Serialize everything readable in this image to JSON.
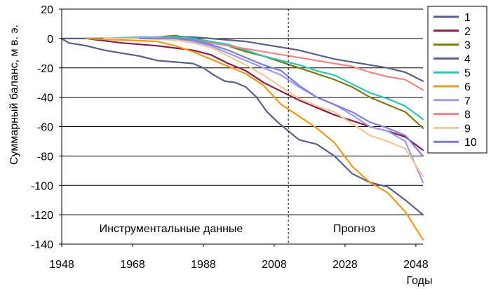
{
  "chart_data": {
    "type": "line",
    "ylabel": "Суммарный баланс,  м в. э.",
    "xlabel": "Годы",
    "xlim": [
      1948,
      2050
    ],
    "ylim": [
      -140,
      20
    ],
    "x_ticks": [
      1948,
      1968,
      1988,
      2008,
      2028,
      2048
    ],
    "y_ticks": [
      20,
      0,
      -20,
      -40,
      -60,
      -80,
      -100,
      -120,
      -140
    ],
    "grid": "horizontal",
    "legend_position": "right",
    "divider_year": 2012,
    "annotations": {
      "left": "Инструментальные данные",
      "right": "Прогноз"
    },
    "series": [
      {
        "name": "1",
        "color": "#5b5e8c",
        "x": [
          1948,
          1950,
          1955,
          1960,
          1965,
          1970,
          1975,
          1980,
          1985,
          1988,
          1991,
          1994,
          1997,
          2000,
          2003,
          2006,
          2009,
          2012,
          2015,
          2020,
          2025,
          2030,
          2035,
          2040,
          2045,
          2050
        ],
        "y": [
          0,
          -3,
          -5,
          -8,
          -10,
          -12,
          -15,
          -16,
          -17,
          -20,
          -25,
          -29,
          -30,
          -33,
          -40,
          -50,
          -57,
          -63,
          -69,
          -72,
          -80,
          -92,
          -98,
          -101,
          -110,
          -120
        ]
      },
      {
        "name": "2",
        "color": "#8b1a4a",
        "x": [
          1955,
          1965,
          1975,
          1985,
          1990,
          1995,
          2000,
          2005,
          2010,
          2015,
          2020,
          2025,
          2030,
          2035,
          2040,
          2045,
          2050
        ],
        "y": [
          0,
          -3,
          -5,
          -8,
          -11,
          -17,
          -22,
          -30,
          -36,
          -42,
          -47,
          -52,
          -56,
          -60,
          -63,
          -67,
          -76
        ]
      },
      {
        "name": "3",
        "color": "#7a7a10",
        "x": [
          1955,
          1965,
          1975,
          1980,
          1985,
          1990,
          1995,
          2000,
          2005,
          2010,
          2015,
          2020,
          2025,
          2030,
          2035,
          2040,
          2045,
          2050
        ],
        "y": [
          0,
          0,
          1,
          2,
          0,
          -2,
          -5,
          -9,
          -12,
          -16,
          -20,
          -24,
          -28,
          -33,
          -40,
          -45,
          -50,
          -61
        ]
      },
      {
        "name": "4",
        "color": "#5b5e8c",
        "x": [
          1948,
          1955,
          1965,
          1975,
          1985,
          1990,
          1995,
          2000,
          2005,
          2010,
          2015,
          2020,
          2025,
          2030,
          2035,
          2040,
          2045,
          2050
        ],
        "y": [
          0,
          0,
          0,
          1,
          1,
          0,
          -1,
          -2,
          -4,
          -6,
          -8,
          -11,
          -14,
          -16,
          -18,
          -20,
          -23,
          -29
        ]
      },
      {
        "name": "5",
        "color": "#2cc5bd",
        "x": [
          1960,
          1970,
          1980,
          1985,
          1990,
          1995,
          2000,
          2005,
          2010,
          2015,
          2020,
          2025,
          2030,
          2035,
          2040,
          2045,
          2050
        ],
        "y": [
          0,
          1,
          1,
          0,
          -2,
          -4,
          -8,
          -12,
          -15,
          -18,
          -22,
          -25,
          -31,
          -37,
          -41,
          -46,
          -55
        ]
      },
      {
        "name": "6",
        "color": "#f39a14",
        "x": [
          1955,
          1965,
          1975,
          1980,
          1985,
          1990,
          1995,
          2000,
          2005,
          2010,
          2015,
          2020,
          2025,
          2030,
          2035,
          2040,
          2045,
          2050
        ],
        "y": [
          0,
          -1,
          -2,
          -5,
          -9,
          -14,
          -19,
          -24,
          -32,
          -45,
          -53,
          -61,
          -71,
          -87,
          -98,
          -105,
          -118,
          -137
        ]
      },
      {
        "name": "7",
        "color": "#9b9ef0",
        "x": [
          1965,
          1975,
          1980,
          1985,
          1990,
          1995,
          2000,
          2005,
          2010,
          2015,
          2020,
          2025,
          2030,
          2035,
          2040,
          2045,
          2050
        ],
        "y": [
          0,
          1,
          0,
          -2,
          -5,
          -10,
          -15,
          -20,
          -25,
          -33,
          -40,
          -45,
          -52,
          -60,
          -63,
          -70,
          -98
        ]
      },
      {
        "name": "8",
        "color": "#f28585",
        "x": [
          1965,
          1975,
          1985,
          1990,
          1995,
          2000,
          2005,
          2010,
          2015,
          2020,
          2025,
          2030,
          2035,
          2040,
          2045,
          2050
        ],
        "y": [
          0,
          0,
          -1,
          -3,
          -5,
          -7,
          -9,
          -11,
          -13,
          -15,
          -17,
          -19,
          -23,
          -26,
          -28,
          -35
        ]
      },
      {
        "name": "9",
        "color": "#f5c89a",
        "x": [
          1960,
          1970,
          1980,
          1985,
          1990,
          1995,
          2000,
          2005,
          2010,
          2015,
          2020,
          2025,
          2030,
          2035,
          2040,
          2045,
          2050
        ],
        "y": [
          0,
          0,
          -1,
          -3,
          -6,
          -12,
          -18,
          -25,
          -33,
          -41,
          -46,
          -50,
          -58,
          -66,
          -70,
          -75,
          -94
        ]
      },
      {
        "name": "10",
        "color": "#7b7fe0",
        "x": [
          1970,
          1980,
          1985,
          1990,
          1995,
          2000,
          2005,
          2010,
          2015,
          2020,
          2025,
          2030,
          2035,
          2040,
          2045,
          2050
        ],
        "y": [
          0,
          0,
          -1,
          -4,
          -8,
          -13,
          -18,
          -22,
          -32,
          -40,
          -45,
          -50,
          -57,
          -61,
          -66,
          -80
        ]
      }
    ]
  }
}
